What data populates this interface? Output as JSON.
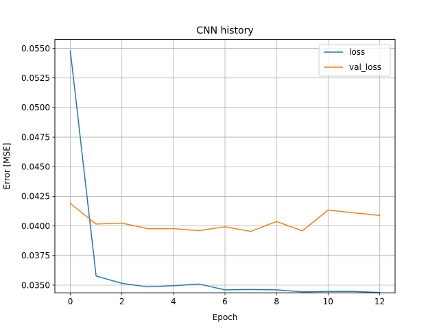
{
  "chart_data": {
    "type": "line",
    "title": "CNN history",
    "xlabel": "Epoch",
    "ylabel": "Error [MSE]",
    "xlim": [
      -0.6,
      12.6
    ],
    "ylim": [
      0.03435,
      0.05575
    ],
    "xticks": [
      0,
      2,
      4,
      6,
      8,
      10,
      12
    ],
    "xtick_labels": [
      "0",
      "2",
      "4",
      "6",
      "8",
      "10",
      "12"
    ],
    "yticks": [
      0.035,
      0.0375,
      0.04,
      0.0425,
      0.045,
      0.0475,
      0.05,
      0.0525,
      0.055
    ],
    "ytick_labels": [
      "0.0350",
      "0.0375",
      "0.0400",
      "0.0425",
      "0.0450",
      "0.0475",
      "0.0500",
      "0.0525",
      "0.0550"
    ],
    "grid": true,
    "legend_position": "top-right",
    "x": [
      0,
      1,
      2,
      3,
      4,
      5,
      6,
      7,
      8,
      9,
      10,
      11,
      12
    ],
    "series": [
      {
        "name": "loss",
        "color": "#1f77b4",
        "values": [
          0.05478,
          0.03577,
          0.03515,
          0.03485,
          0.03495,
          0.03509,
          0.0346,
          0.03463,
          0.0346,
          0.03443,
          0.03446,
          0.03446,
          0.03438
        ]
      },
      {
        "name": "val_loss",
        "color": "#ff7f0e",
        "values": [
          0.0419,
          0.04016,
          0.04024,
          0.03977,
          0.03977,
          0.0396,
          0.03993,
          0.03954,
          0.04037,
          0.03958,
          0.04134,
          0.04111,
          0.04089
        ]
      }
    ]
  }
}
